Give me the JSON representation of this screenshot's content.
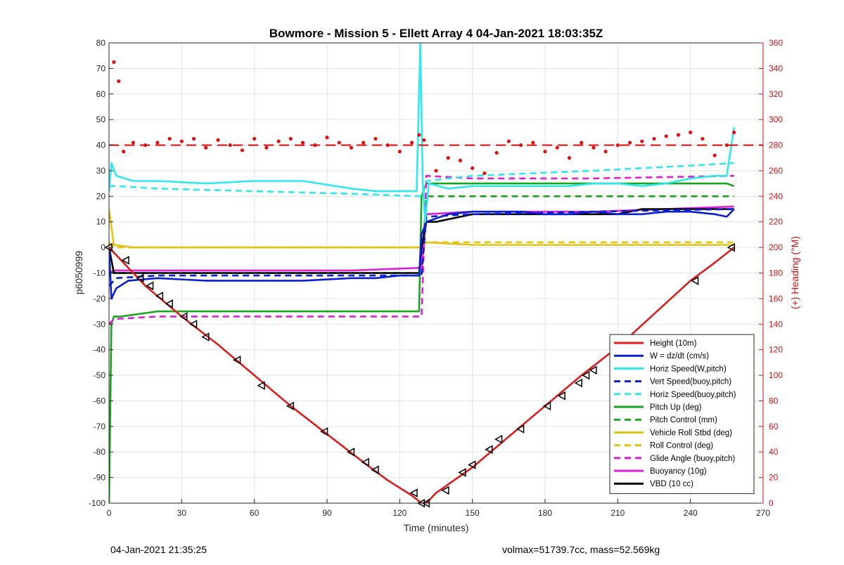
{
  "chart_data": {
    "type": "line",
    "title": "Bowmore - Mission 5 - Ellett Array 4 04-Jan-2021 18:03:35Z",
    "xlabel": "Time (minutes)",
    "ylabel": "p6050999",
    "ylabel_right": "(+) Heading (°M)",
    "xlim": [
      0,
      270
    ],
    "ylim": [
      -100,
      80
    ],
    "ylim_right": [
      0,
      360
    ],
    "x_ticks": [
      0,
      30,
      60,
      90,
      120,
      150,
      180,
      210,
      240,
      270
    ],
    "y_ticks": [
      -100,
      -90,
      -80,
      -70,
      -60,
      -50,
      -40,
      -30,
      -20,
      -10,
      0,
      10,
      20,
      30,
      40,
      50,
      60,
      70,
      80
    ],
    "y_ticks_right": [
      0,
      20,
      40,
      60,
      80,
      100,
      120,
      140,
      160,
      180,
      200,
      220,
      240,
      260,
      280,
      300,
      320,
      340,
      360
    ],
    "grid": true,
    "legend_position": "bottom-right",
    "series": [
      {
        "name": "Height (10m)",
        "color": "#dd1c1c",
        "style": "solid",
        "x": [
          0,
          5,
          15,
          30,
          45,
          60,
          75,
          90,
          105,
          115,
          125,
          129,
          131,
          135,
          150,
          165,
          180,
          195,
          210,
          225,
          240,
          250,
          258
        ],
        "y": [
          0,
          -5,
          -15,
          -27,
          -38,
          -50,
          -62,
          -73,
          -84,
          -91,
          -97,
          -100,
          -100,
          -96,
          -86,
          -74,
          -62,
          -50,
          -39,
          -26,
          -13,
          -6,
          0
        ]
      },
      {
        "name": "W = dz/dt (cm/s)",
        "color": "#0a1fd0",
        "style": "solid",
        "x": [
          0,
          1,
          3,
          8,
          20,
          40,
          60,
          80,
          100,
          110,
          120,
          128,
          129,
          131,
          140,
          150,
          160,
          170,
          180,
          190,
          200,
          210,
          220,
          230,
          240,
          250,
          255,
          258
        ],
        "y": [
          0,
          -20,
          -16,
          -13,
          -12,
          -13,
          -13,
          -13,
          -12,
          -12,
          -11,
          -11,
          5,
          10,
          13,
          14,
          14,
          14,
          13,
          13,
          14,
          13,
          13,
          14,
          14,
          13,
          12,
          15
        ]
      },
      {
        "name": "Horiz Speed(W,pitch)",
        "color": "#2ee8ee",
        "style": "solid",
        "x": [
          0,
          1,
          3,
          10,
          20,
          40,
          60,
          80,
          100,
          110,
          120,
          127,
          128.5,
          129.5,
          130.5,
          132,
          140,
          150,
          160,
          170,
          180,
          190,
          200,
          210,
          220,
          230,
          240,
          250,
          255,
          258
        ],
        "y": [
          22,
          33,
          28,
          26,
          26,
          25,
          26,
          26,
          23,
          22,
          22,
          22,
          80,
          25,
          10,
          25,
          23,
          24,
          24,
          24,
          24,
          24,
          25,
          25,
          24,
          25,
          27,
          28,
          28,
          47
        ]
      },
      {
        "name": "Vert Speed(buoy,pitch)",
        "color": "#0a1fd0",
        "style": "dash",
        "x": [
          0,
          3,
          20,
          60,
          100,
          129,
          131,
          150,
          200,
          258
        ],
        "y": [
          -15,
          -12,
          -11,
          -11,
          -11,
          -11,
          12,
          13,
          14,
          15
        ]
      },
      {
        "name": "Horiz Speed(buoy,pitch)",
        "color": "#2ee8ee",
        "style": "dash",
        "x": [
          0,
          3,
          20,
          60,
          100,
          129,
          131,
          150,
          200,
          240,
          258
        ],
        "y": [
          24,
          24,
          23,
          22,
          21,
          20,
          26,
          28,
          30,
          32,
          33
        ]
      },
      {
        "name": "Pitch Up (deg)",
        "color": "#17a520",
        "style": "solid",
        "x": [
          0,
          1,
          2,
          5,
          20,
          40,
          60,
          80,
          100,
          120,
          128,
          129,
          131,
          140,
          160,
          180,
          200,
          220,
          240,
          255,
          258
        ],
        "y": [
          -100,
          -30,
          -27,
          -27,
          -25,
          -25,
          -25,
          -25,
          -25,
          -25,
          -25,
          20,
          25,
          25,
          25,
          25,
          25,
          25,
          25,
          25,
          24
        ]
      },
      {
        "name": "Pitch Control (mm)",
        "color": "#17a520",
        "style": "dash",
        "x": [
          0,
          2,
          129,
          131,
          258
        ],
        "y": [
          -10,
          -10,
          -10,
          20,
          20
        ]
      },
      {
        "name": "Vehicle Roll Stbd (deg)",
        "color": "#e3c312",
        "style": "solid",
        "x": [
          0,
          2,
          10,
          30,
          60,
          90,
          120,
          128,
          131,
          150,
          180,
          210,
          240,
          258
        ],
        "y": [
          15,
          1,
          0,
          0,
          0,
          0,
          0,
          0,
          2,
          1,
          1,
          1,
          1,
          1
        ]
      },
      {
        "name": "Roll Control (deg)",
        "color": "#e3c312",
        "style": "dash",
        "x": [
          0,
          2,
          129,
          131,
          258
        ],
        "y": [
          2,
          0,
          0,
          2,
          2
        ]
      },
      {
        "name": "Glide Angle (buoy,pitch)",
        "color": "#e01ed8",
        "style": "dash",
        "x": [
          0,
          2,
          20,
          60,
          100,
          129,
          131,
          150,
          200,
          258
        ],
        "y": [
          -30,
          -28,
          -27,
          -27,
          -27,
          -27,
          28,
          27,
          27,
          28
        ]
      },
      {
        "name": "Buoyancy (10g)",
        "color": "#e01ed8",
        "style": "solid",
        "x": [
          0,
          2,
          60,
          100,
          128,
          129,
          131,
          150,
          200,
          258
        ],
        "y": [
          -10,
          -9,
          -9,
          -9,
          -8,
          -8,
          13,
          14,
          14,
          16
        ]
      },
      {
        "name": "VBD (10 cc)",
        "color": "#000000",
        "style": "solid",
        "x": [
          0,
          2,
          60,
          100,
          128,
          129,
          131,
          135,
          140,
          150,
          210,
          220,
          258
        ],
        "y": [
          0,
          -10,
          -10,
          -10,
          -10,
          0,
          10,
          10,
          11,
          13,
          13,
          15,
          15
        ]
      }
    ],
    "heading_series": {
      "name": "Heading",
      "axis": "right",
      "color": "#e01010",
      "style": "dots",
      "x": [
        2,
        4,
        6,
        10,
        15,
        20,
        25,
        30,
        35,
        40,
        45,
        50,
        55,
        60,
        65,
        70,
        75,
        80,
        85,
        90,
        95,
        100,
        105,
        110,
        115,
        120,
        125,
        128,
        130,
        135,
        140,
        145,
        150,
        155,
        160,
        165,
        170,
        175,
        180,
        185,
        190,
        195,
        200,
        205,
        210,
        215,
        220,
        225,
        230,
        235,
        240,
        245,
        250,
        255,
        258
      ],
      "y": [
        345,
        330,
        275,
        282,
        280,
        282,
        285,
        283,
        285,
        278,
        284,
        280,
        276,
        285,
        278,
        283,
        285,
        282,
        280,
        286,
        282,
        278,
        282,
        285,
        280,
        275,
        282,
        288,
        284,
        260,
        270,
        268,
        262,
        258,
        274,
        283,
        280,
        282,
        275,
        278,
        270,
        282,
        278,
        275,
        280,
        282,
        283,
        285,
        287,
        288,
        290,
        285,
        272,
        280,
        290
      ]
    },
    "heading_reference": {
      "y": 280,
      "color": "#e01010",
      "style": "dash"
    },
    "markers": {
      "color": "#000000",
      "x": [
        0,
        7,
        13,
        17,
        21,
        25,
        31,
        35,
        40,
        53,
        63,
        75,
        89,
        100,
        106,
        110,
        126,
        129,
        131,
        139,
        146,
        150,
        157,
        161,
        170,
        181,
        187,
        194,
        197,
        200,
        242,
        257
      ],
      "y": [
        0,
        -5,
        -12,
        -15,
        -19,
        -22,
        -27,
        -30,
        -35,
        -44,
        -54,
        -62,
        -72,
        -80,
        -84,
        -87,
        -96,
        -100,
        -100,
        -95,
        -88,
        -85,
        -79,
        -75,
        -71,
        -62,
        -58,
        -53,
        -50,
        -48,
        -13,
        0
      ]
    }
  },
  "footer": {
    "left": "04-Jan-2021 21:35:25",
    "right": "volmax=51739.7cc, mass=52.569kg"
  }
}
